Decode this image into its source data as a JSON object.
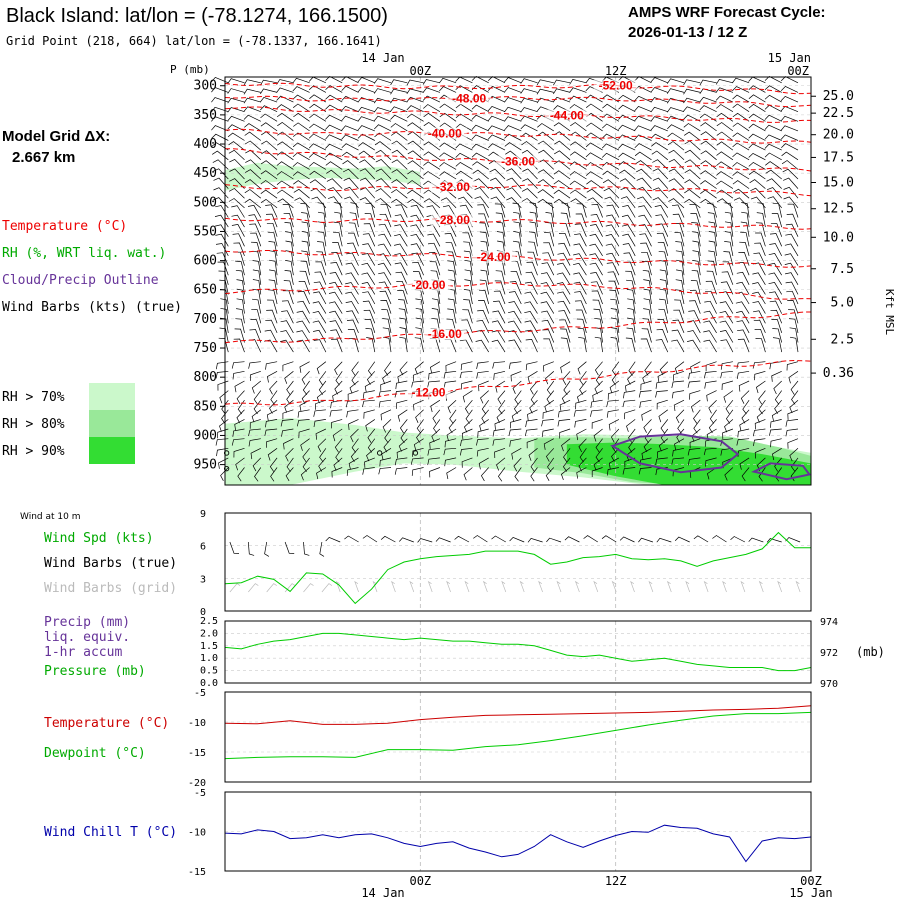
{
  "header": {
    "station_line": "Black Island:  lat/lon = (-78.1274, 166.1500)",
    "grid_line": "Grid Point (218, 664) lat/lon = (-78.1337, 166.1641)",
    "cycle_title": "AMPS WRF Forecast Cycle:",
    "cycle_value": "2026-01-13 / 12  Z",
    "model_grid_label": "Model Grid ΔX:",
    "model_grid_value": "2.667 km"
  },
  "time_axis": {
    "top_dates": [
      "14 Jan",
      "15 Jan"
    ],
    "labels": [
      "00Z",
      "12Z",
      "00Z"
    ],
    "label_hours": [
      12,
      24,
      36
    ],
    "hour_range": [
      0,
      36
    ]
  },
  "legend": {
    "temperature": "Temperature (°C)",
    "rh": "RH (%, WRT liq. wat.)",
    "cloud": "Cloud/Precip Outline",
    "wind": "Wind Barbs (kts) (true)",
    "rh_levels": [
      "RH > 70%",
      "RH > 80%",
      "RH > 90%"
    ],
    "rh_colors": [
      "#cbf8cb",
      "#99e899",
      "#33dd33"
    ]
  },
  "colors": {
    "temperature": "#ee0000",
    "rh_text": "#00aa00",
    "cloud": "#663399",
    "speed": "#00cc00",
    "wind_chill": "#0000aa",
    "gray_text": "#bbbbbb"
  },
  "chart_data": [
    {
      "type": "contour",
      "name": "cross-section",
      "y_axis_label": "P (mb)",
      "pressure_ticks": [
        300,
        350,
        400,
        450,
        500,
        550,
        600,
        650,
        700,
        750,
        800,
        850,
        900,
        950
      ],
      "pressure_range": [
        285,
        985
      ],
      "height_axis_label": "Kft MSL",
      "height_ticks": [
        {
          "label": "25.0",
          "p": 318
        },
        {
          "label": "22.5",
          "p": 347
        },
        {
          "label": "20.0",
          "p": 384
        },
        {
          "label": "17.5",
          "p": 423
        },
        {
          "label": "15.0",
          "p": 466
        },
        {
          "label": "12.5",
          "p": 511
        },
        {
          "label": "10.0",
          "p": 560
        },
        {
          "label": "7.5",
          "p": 614
        },
        {
          "label": "5.0",
          "p": 672
        },
        {
          "label": "2.5",
          "p": 735
        },
        {
          "label": "0.36",
          "p": 793
        }
      ],
      "temperature_contours": [
        {
          "label": "-52.00",
          "label_hour": 24.0,
          "hours": [
            0,
            6,
            12,
            18,
            24,
            30,
            36
          ],
          "p": [
            296,
            300,
            303,
            302,
            300,
            305,
            312
          ]
        },
        {
          "label": "-48.00",
          "label_hour": 15.0,
          "hours": [
            0,
            6,
            12,
            18,
            24,
            30,
            36
          ],
          "p": [
            318,
            324,
            323,
            321,
            323,
            328,
            335
          ]
        },
        {
          "label": "-44.00",
          "label_hour": 21.0,
          "hours": [
            0,
            6,
            12,
            18,
            24,
            30,
            36
          ],
          "p": [
            337,
            343,
            346,
            350,
            352,
            358,
            362
          ]
        },
        {
          "label": "-40.00",
          "label_hour": 13.5,
          "hours": [
            0,
            6,
            12,
            18,
            24,
            30,
            36
          ],
          "p": [
            376,
            383,
            381,
            384,
            388,
            394,
            398
          ]
        },
        {
          "label": "-36.00",
          "label_hour": 18.0,
          "hours": [
            0,
            6,
            12,
            18,
            24,
            30,
            36
          ],
          "p": [
            410,
            418,
            425,
            430,
            435,
            440,
            445
          ]
        },
        {
          "label": "-32.00",
          "label_hour": 14.0,
          "hours": [
            0,
            6,
            12,
            18,
            24,
            30,
            36
          ],
          "p": [
            472,
            478,
            474,
            472,
            476,
            480,
            486
          ]
        },
        {
          "label": "-28.00",
          "label_hour": 14.0,
          "hours": [
            0,
            6,
            12,
            18,
            24,
            30,
            36
          ],
          "p": [
            528,
            532,
            530,
            532,
            536,
            540,
            544
          ]
        },
        {
          "label": "-24.00",
          "label_hour": 16.5,
          "hours": [
            0,
            6,
            12,
            18,
            24,
            30,
            36
          ],
          "p": [
            582,
            588,
            590,
            595,
            600,
            605,
            610
          ]
        },
        {
          "label": "-20.00",
          "label_hour": 12.5,
          "hours": [
            0,
            6,
            12,
            18,
            24,
            30,
            36
          ],
          "p": [
            654,
            648,
            642,
            640,
            645,
            655,
            668
          ]
        },
        {
          "label": "-16.00",
          "label_hour": 13.5,
          "hours": [
            0,
            6,
            12,
            18,
            24,
            30,
            36
          ],
          "p": [
            740,
            736,
            728,
            720,
            712,
            700,
            690
          ]
        },
        {
          "label": "-12.00",
          "label_hour": 12.5,
          "hours": [
            0,
            6,
            12,
            18,
            24,
            30,
            36
          ],
          "p": [
            848,
            842,
            828,
            812,
            796,
            782,
            772
          ]
        }
      ],
      "rh_regions": [
        {
          "level": 70,
          "hours": [
            0,
            4,
            8,
            11,
            14,
            18,
            22,
            26,
            30,
            33,
            36
          ],
          "p_top": [
            880,
            870,
            882,
            895,
            900,
            905,
            898,
            900,
            905,
            915,
            930
          ],
          "p_bot": [
            985,
            985,
            962,
            948,
            950,
            962,
            972,
            985,
            985,
            985,
            985
          ]
        },
        {
          "level": 70,
          "hours": [
            0,
            2,
            4,
            6,
            8,
            10,
            12
          ],
          "p_top": [
            445,
            432,
            438,
            440,
            442,
            438,
            448
          ],
          "p_bot": [
            480,
            468,
            462,
            458,
            460,
            462,
            470
          ]
        },
        {
          "level": 80,
          "hours": [
            19,
            22,
            25,
            28,
            31,
            34,
            36
          ],
          "p_top": [
            905,
            903,
            905,
            900,
            902,
            920,
            935
          ],
          "p_bot": [
            955,
            965,
            980,
            985,
            985,
            985,
            985
          ]
        },
        {
          "level": 90,
          "hours": [
            21,
            24,
            27,
            30,
            33,
            36
          ],
          "p_top": [
            915,
            912,
            915,
            920,
            932,
            948
          ],
          "p_bot": [
            950,
            970,
            985,
            985,
            985,
            985
          ]
        }
      ],
      "cloud_outlines": [
        {
          "hours": [
            23.8,
            25.5,
            28,
            30.5,
            31.5,
            30.5,
            28,
            25.5,
            23.8
          ],
          "p": [
            918,
            902,
            898,
            910,
            932,
            955,
            963,
            948,
            918
          ]
        },
        {
          "hours": [
            32.5,
            33.5,
            35.5,
            35.9,
            34.5,
            32.5
          ],
          "p": [
            962,
            948,
            952,
            967,
            975,
            962
          ]
        }
      ]
    },
    {
      "type": "line",
      "name": "wind-speed-10m",
      "title": "Wind at 10 m",
      "legend": [
        "Wind Spd (kts)",
        "Wind Barbs (true)",
        "Wind Barbs (grid)"
      ],
      "y_ticks": [
        0,
        3,
        6,
        9
      ],
      "ylim": [
        0,
        9
      ],
      "hours": [
        0,
        1,
        2,
        3,
        4,
        5,
        6,
        7,
        8,
        9,
        10,
        11,
        12,
        13,
        14,
        15,
        16,
        17,
        18,
        19,
        20,
        21,
        22,
        23,
        24,
        25,
        26,
        27,
        28,
        29,
        30,
        31,
        32,
        33,
        34,
        35,
        36
      ],
      "series": [
        {
          "name": "Wind Spd (kts)",
          "values": [
            2.5,
            2.6,
            3.2,
            2.9,
            1.8,
            3.5,
            3.4,
            2.4,
            0.7,
            2.0,
            3.8,
            4.5,
            4.8,
            5.0,
            5.1,
            5.2,
            5.5,
            5.5,
            5.5,
            5.2,
            4.3,
            4.5,
            4.9,
            5.0,
            5.2,
            4.8,
            4.7,
            4.8,
            4.6,
            4.1,
            4.6,
            4.9,
            5.2,
            5.7,
            7.2,
            5.8,
            5.8
          ]
        }
      ]
    },
    {
      "type": "line",
      "name": "pressure",
      "legend": [
        "Precip (mm)",
        "liq. equiv.",
        "1-hr accum",
        "Pressure (mb)"
      ],
      "y_left_ticks": [
        "2.5",
        "2.0",
        "1.5",
        "1.0",
        "0.5",
        "0.0"
      ],
      "y_left_range": [
        0,
        2.5
      ],
      "y_right_ticks": [
        974,
        972,
        970
      ],
      "y_right_range": [
        970,
        974
      ],
      "y_right_unit": "(mb)",
      "hours": [
        0,
        1,
        2,
        3,
        4,
        5,
        6,
        7,
        8,
        9,
        10,
        11,
        12,
        13,
        14,
        15,
        16,
        17,
        18,
        19,
        20,
        21,
        22,
        23,
        24,
        25,
        26,
        27,
        28,
        29,
        30,
        31,
        32,
        33,
        34,
        35,
        36
      ],
      "series": [
        {
          "name": "Pressure (mb)",
          "values": [
            972.3,
            972.2,
            972.5,
            972.7,
            972.8,
            973.0,
            973.2,
            973.2,
            973.1,
            973.0,
            972.9,
            972.8,
            972.9,
            972.8,
            972.7,
            972.7,
            972.6,
            972.5,
            972.5,
            972.4,
            972.1,
            971.8,
            971.7,
            971.8,
            971.6,
            971.4,
            971.5,
            971.6,
            971.4,
            971.2,
            971.1,
            971.0,
            971.0,
            971.0,
            970.8,
            970.8,
            971.0
          ]
        },
        {
          "name": "Precip (mm)",
          "values": [
            0,
            0,
            0,
            0,
            0,
            0,
            0,
            0,
            0,
            0,
            0,
            0,
            0,
            0,
            0,
            0,
            0,
            0,
            0,
            0,
            0,
            0,
            0,
            0,
            0,
            0,
            0,
            0,
            0,
            0,
            0,
            0,
            0,
            0,
            0,
            0,
            0
          ]
        }
      ]
    },
    {
      "type": "line",
      "name": "temperature-dewpoint",
      "legend": [
        "Temperature (°C)",
        "Dewpoint (°C)"
      ],
      "y_ticks": [
        -5,
        -10,
        -15,
        -20
      ],
      "ylim": [
        -20,
        -5
      ],
      "hours": [
        0,
        2,
        4,
        6,
        8,
        10,
        12,
        14,
        16,
        18,
        20,
        22,
        24,
        26,
        28,
        30,
        32,
        34,
        36
      ],
      "series": [
        {
          "name": "Temperature (°C)",
          "color": "#cc0000",
          "values": [
            -10.2,
            -10.3,
            -9.8,
            -10.4,
            -10.4,
            -10.2,
            -9.6,
            -9.2,
            -8.9,
            -8.8,
            -8.7,
            -8.6,
            -8.5,
            -8.4,
            -8.2,
            -8.0,
            -7.9,
            -7.7,
            -7.3
          ]
        },
        {
          "name": "Dewpoint (°C)",
          "color": "#00cc00",
          "values": [
            -16.1,
            -15.9,
            -15.8,
            -15.8,
            -15.9,
            -14.6,
            -14.6,
            -14.7,
            -14.1,
            -13.8,
            -13.1,
            -12.3,
            -11.4,
            -10.5,
            -9.7,
            -9.0,
            -8.6,
            -8.6,
            -8.4
          ]
        }
      ]
    },
    {
      "type": "line",
      "name": "wind-chill",
      "legend": [
        "Wind Chill T (°C)"
      ],
      "y_ticks": [
        -5,
        -10,
        -15
      ],
      "ylim": [
        -15,
        -5
      ],
      "hours": [
        0,
        1,
        2,
        3,
        4,
        5,
        6,
        7,
        8,
        9,
        10,
        11,
        12,
        13,
        14,
        15,
        16,
        17,
        18,
        19,
        20,
        21,
        22,
        23,
        24,
        25,
        26,
        27,
        28,
        29,
        30,
        31,
        32,
        33,
        34,
        35,
        36
      ],
      "series": [
        {
          "name": "Wind Chill T (°C)",
          "color": "#0000aa",
          "values": [
            -10.2,
            -10.3,
            -9.8,
            -10.0,
            -10.9,
            -10.8,
            -10.4,
            -10.8,
            -10.4,
            -10.3,
            -10.8,
            -11.5,
            -11.9,
            -11.5,
            -11.3,
            -12.1,
            -12.6,
            -13.2,
            -12.9,
            -11.9,
            -10.4,
            -11.3,
            -12.0,
            -11.2,
            -10.5,
            -10.0,
            -10.1,
            -9.2,
            -9.5,
            -9.6,
            -10.3,
            -10.7,
            -13.8,
            -11.2,
            -10.8,
            -10.9,
            -10.7
          ]
        }
      ]
    }
  ]
}
